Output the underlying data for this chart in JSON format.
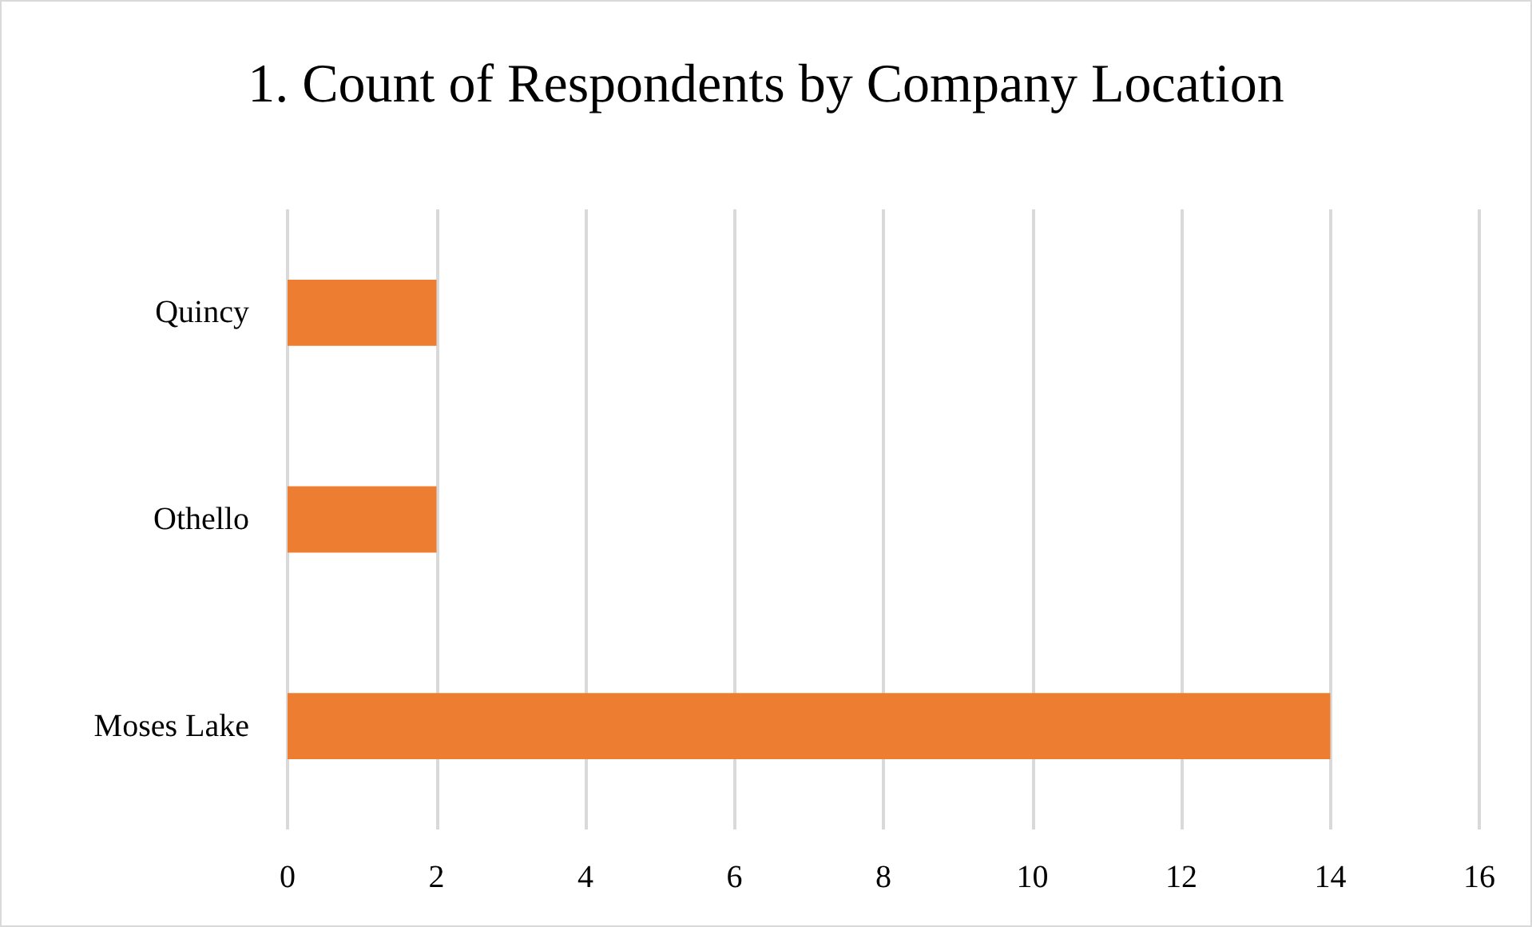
{
  "chart_data": {
    "type": "bar",
    "title": "1. Count of Respondents by Company Location",
    "orientation": "horizontal",
    "categories": [
      "Quincy",
      "Othello",
      "Moses Lake"
    ],
    "values": [
      2,
      2,
      14
    ],
    "color": "#ed7d31",
    "xlim": [
      0,
      16
    ],
    "xticks": [
      0,
      2,
      4,
      6,
      8,
      10,
      12,
      14,
      16
    ],
    "grid": "x"
  }
}
